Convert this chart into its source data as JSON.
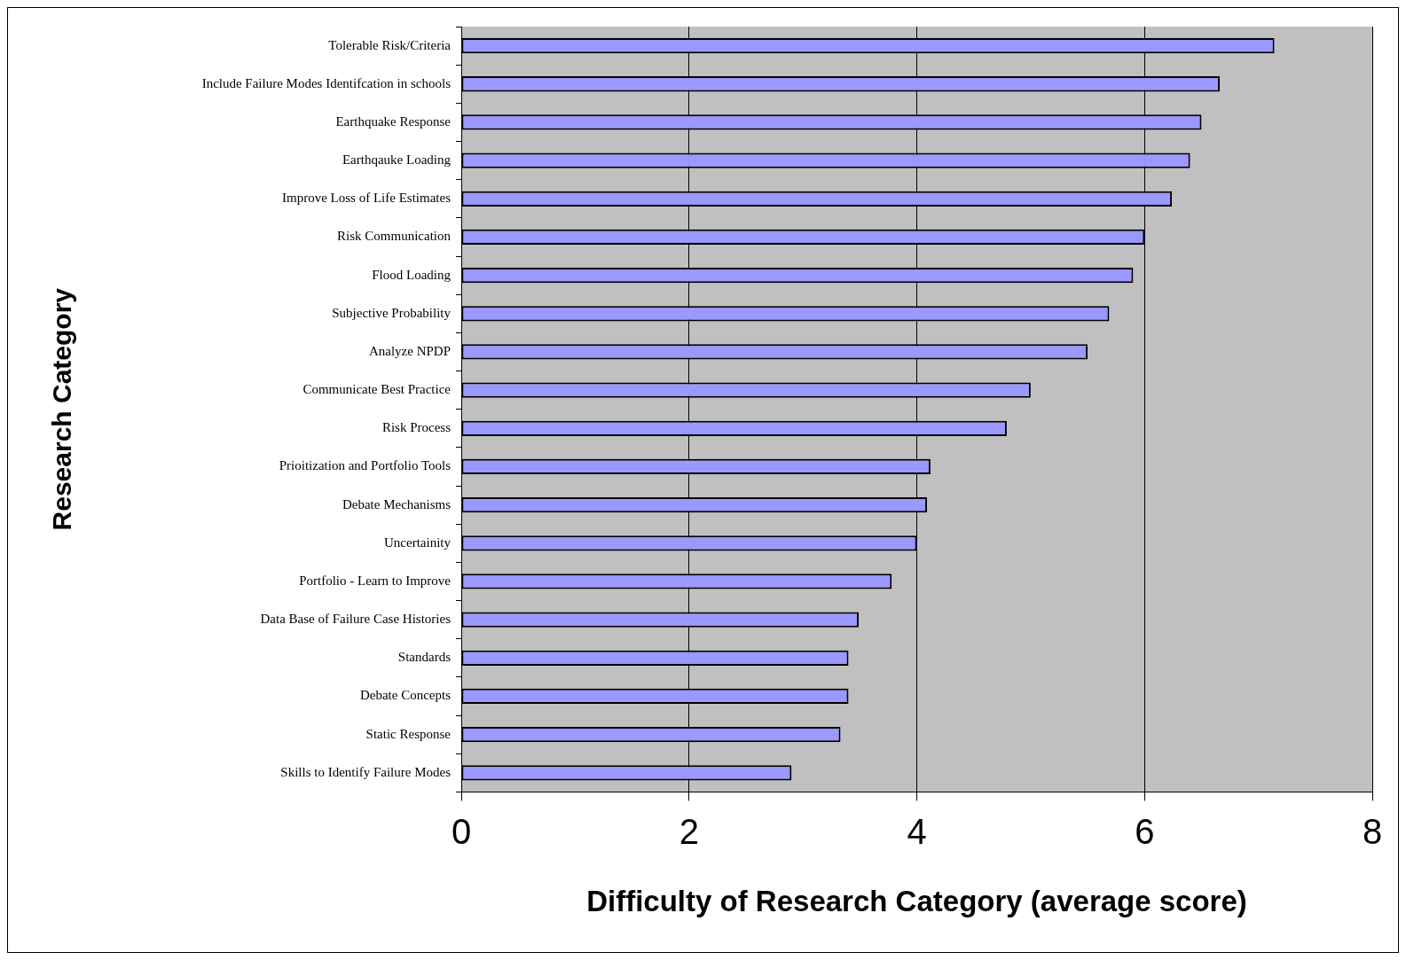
{
  "chart_data": {
    "type": "bar",
    "orientation": "horizontal",
    "xlabel": "Difficulty of Research Category (average score)",
    "ylabel": "Research Category",
    "categories": [
      "Tolerable Risk/Criteria",
      "Include Failure Modes Identifcation in schools",
      "Earthquake Response",
      "Earthqauke Loading",
      "Improve Loss of Life Estimates",
      "Risk Communication",
      "Flood Loading",
      "Subjective Probability",
      "Analyze NPDP",
      "Communicate Best Practice",
      "Risk Process",
      "Prioitization and Portfolio Tools",
      "Debate Mechanisms",
      "Uncertainity",
      "Portfolio - Learn to Improve",
      "Data Base of Failure Case Histories",
      "Standards",
      "Debate Concepts",
      "Static Response",
      "Skills to Identify Failure Modes"
    ],
    "values": [
      7.14,
      6.66,
      6.5,
      6.4,
      6.24,
      6.0,
      5.9,
      5.69,
      5.5,
      5.0,
      4.79,
      4.12,
      4.09,
      4.0,
      3.78,
      3.49,
      3.4,
      3.4,
      3.33,
      2.9
    ],
    "color": "#9999ff",
    "xlim": [
      0,
      8
    ],
    "xticks": [
      0,
      2,
      4,
      6,
      8
    ],
    "grid": "x",
    "legend": false
  }
}
